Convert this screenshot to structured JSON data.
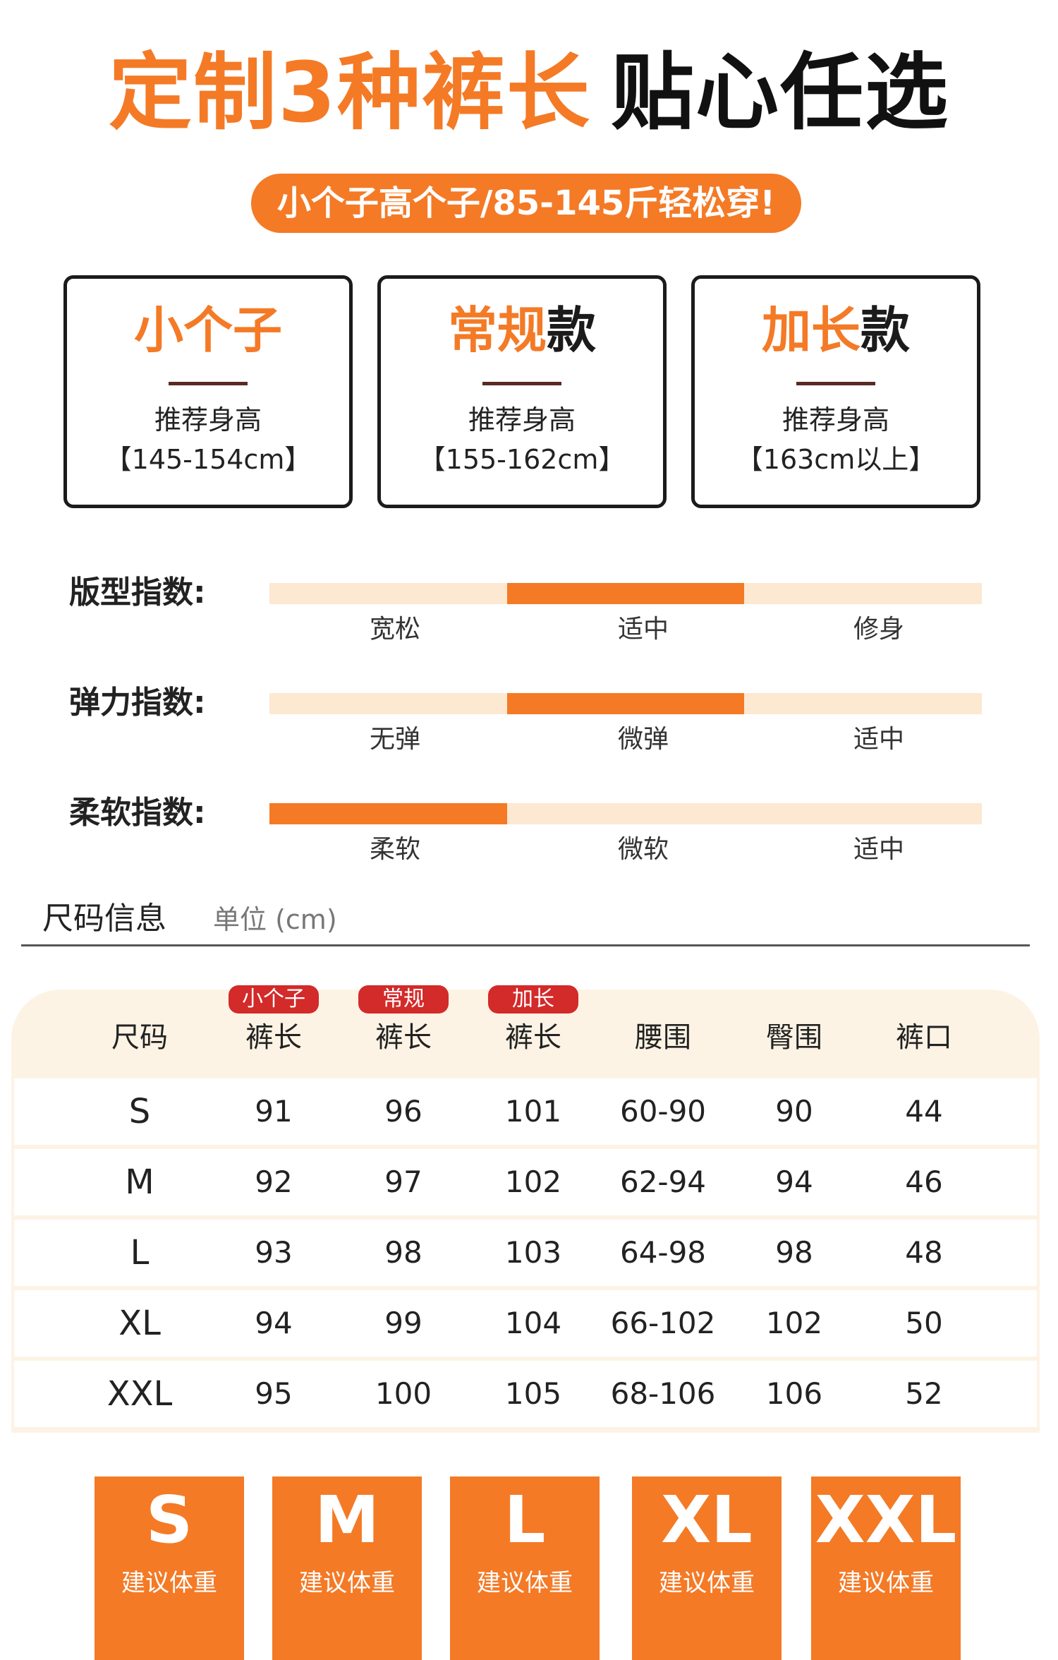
{
  "title": {
    "orange": "定制3种裤长",
    "black": "贴心任选"
  },
  "pill": "小个子高个子/85-145斤轻松穿!",
  "cards": [
    {
      "title_orange": "小个子",
      "title_dark": "",
      "sub": "推荐身高",
      "range": "【145-154cm】"
    },
    {
      "title_orange": "常规",
      "title_dark": "款",
      "sub": "推荐身高",
      "range": "【155-162cm】"
    },
    {
      "title_orange": "加长",
      "title_dark": "款",
      "sub": "推荐身高",
      "range": "【163cm以上】"
    }
  ],
  "indices": [
    {
      "label": "版型指数:",
      "options": [
        "宽松",
        "适中",
        "修身"
      ],
      "selected_index": 1
    },
    {
      "label": "弹力指数:",
      "options": [
        "无弹",
        "微弹",
        "适中"
      ],
      "selected_index": 1
    },
    {
      "label": "柔软指数:",
      "options": [
        "柔软",
        "微软",
        "适中"
      ],
      "selected_index": 0
    }
  ],
  "size_info": {
    "title": "尺码信息",
    "unit": "单位 (cm)"
  },
  "table": {
    "headers": [
      "尺码",
      "裤长",
      "裤长",
      "裤长",
      "腰围",
      "臀围",
      "裤口"
    ],
    "badges": [
      "小个子",
      "常规",
      "加长"
    ],
    "rows": [
      [
        "S",
        "91",
        "96",
        "101",
        "60-90",
        "90",
        "44"
      ],
      [
        "M",
        "92",
        "97",
        "102",
        "62-94",
        "94",
        "46"
      ],
      [
        "L",
        "93",
        "98",
        "103",
        "64-98",
        "98",
        "48"
      ],
      [
        "XL",
        "94",
        "99",
        "104",
        "66-102",
        "102",
        "50"
      ],
      [
        "XXL",
        "95",
        "100",
        "105",
        "68-106",
        "106",
        "52"
      ]
    ]
  },
  "tiles": [
    {
      "size": "S",
      "label": "建议体重"
    },
    {
      "size": "M",
      "label": "建议体重"
    },
    {
      "size": "L",
      "label": "建议体重"
    },
    {
      "size": "XL",
      "label": "建议体重"
    },
    {
      "size": "XXL",
      "label": "建议体重"
    }
  ],
  "colors": {
    "accent": "#f47a26",
    "track": "#fde8d2",
    "badge": "#d32a2a",
    "table_bg": "#fdf3e5"
  }
}
